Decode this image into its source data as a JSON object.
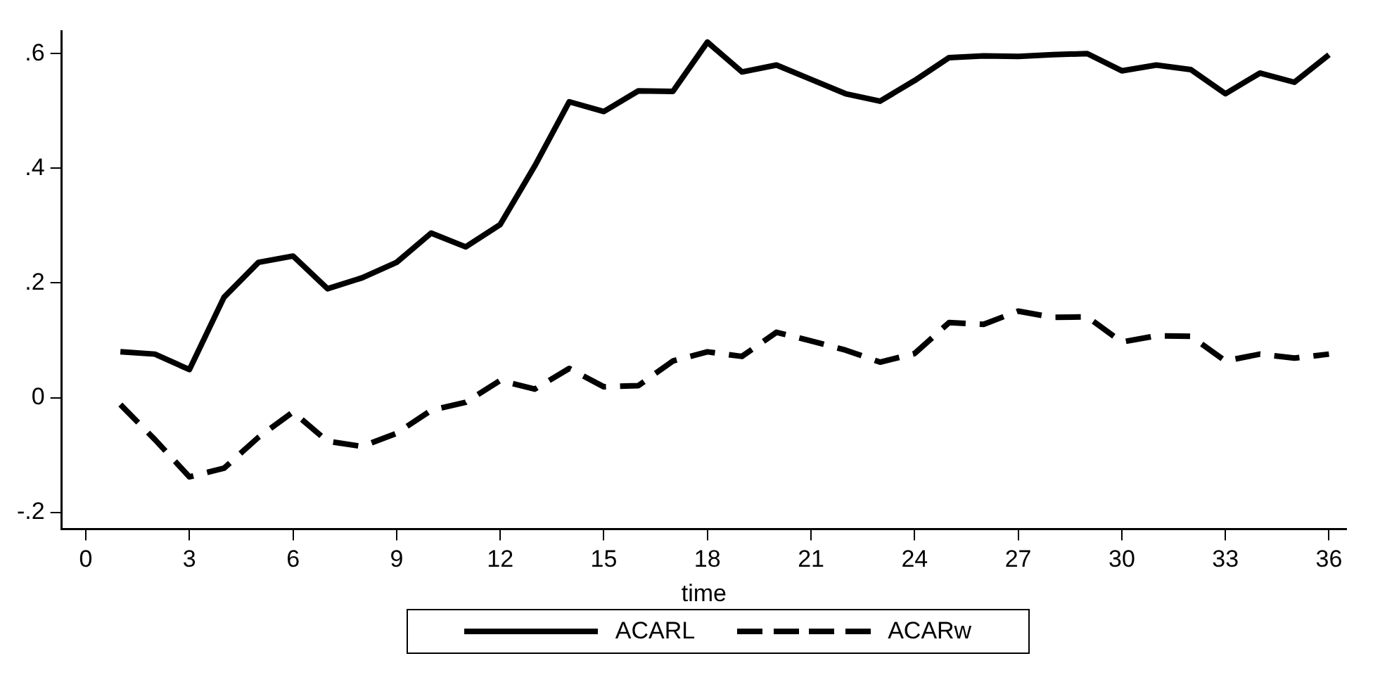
{
  "chart_data": {
    "type": "line",
    "xlabel": "time",
    "x": [
      1,
      2,
      3,
      4,
      5,
      6,
      7,
      8,
      9,
      10,
      11,
      12,
      13,
      14,
      15,
      16,
      17,
      18,
      19,
      20,
      21,
      22,
      23,
      24,
      25,
      26,
      27,
      28,
      29,
      30,
      31,
      32,
      33,
      34,
      35,
      36
    ],
    "series": [
      {
        "name": "ACARL",
        "color": "#000000",
        "line_style": "solid",
        "values": [
          0.08,
          0.076,
          0.049,
          0.175,
          0.236,
          0.247,
          0.19,
          0.209,
          0.236,
          0.287,
          0.263,
          0.302,
          0.404,
          0.516,
          0.499,
          0.535,
          0.534,
          0.62,
          0.568,
          0.58,
          0.555,
          0.53,
          0.517,
          0.553,
          0.593,
          0.596,
          0.595,
          0.598,
          0.6,
          0.57,
          0.58,
          0.572,
          0.53,
          0.566,
          0.55,
          0.598
        ]
      },
      {
        "name": "ACARw",
        "color": "#000000",
        "line_style": "dashed",
        "values": [
          -0.012,
          -0.073,
          -0.138,
          -0.123,
          -0.069,
          -0.025,
          -0.076,
          -0.085,
          -0.062,
          -0.022,
          -0.008,
          0.03,
          0.015,
          0.051,
          0.019,
          0.021,
          0.064,
          0.08,
          0.072,
          0.114,
          0.099,
          0.083,
          0.062,
          0.077,
          0.131,
          0.128,
          0.151,
          0.14,
          0.141,
          0.097,
          0.108,
          0.107,
          0.064,
          0.076,
          0.069,
          0.076
        ]
      }
    ],
    "xlim": [
      -0.7,
      36.5
    ],
    "xticks": [
      0,
      3,
      6,
      9,
      12,
      15,
      18,
      21,
      24,
      27,
      30,
      33,
      36
    ],
    "ylim": [
      -0.229,
      0.639
    ],
    "yticks": [
      {
        "value": -0.2,
        "label": "-.2"
      },
      {
        "value": 0,
        "label": "0"
      },
      {
        "value": 0.2,
        "label": ".2"
      },
      {
        "value": 0.4,
        "label": ".4"
      },
      {
        "value": 0.6,
        "label": ".6"
      }
    ],
    "grid": false,
    "legend": "bottom",
    "marker": "none"
  }
}
